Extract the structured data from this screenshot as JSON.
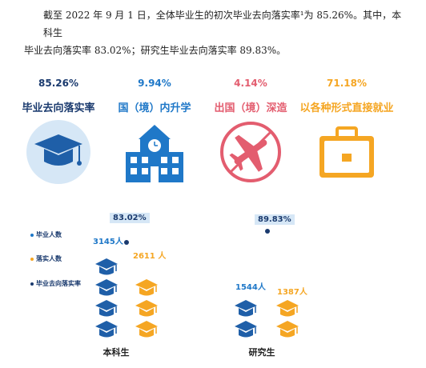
{
  "paragraph": {
    "line1": "截至 2022 年 9 月 1 日，全体毕业生的初次毕业去向落实率¹为 85.26%。其中，本科生",
    "line2": "毕业去向落实率 83.02%；研究生毕业去向落实率 89.83%。"
  },
  "stats": [
    {
      "value": "85.26%",
      "label": "毕业去向落实率",
      "color": "#1a3a6e",
      "icon": "graduation-cap-icon"
    },
    {
      "value": "9.94%",
      "label": "国（境）内升学",
      "color": "#1f78c8",
      "icon": "school-building-icon"
    },
    {
      "value": "4.14%",
      "label": "出国（境）深造",
      "color": "#e35d6f",
      "icon": "airplane-icon"
    },
    {
      "value": "71.18%",
      "label": "以各种形式直接就业",
      "color": "#f5a623",
      "icon": "briefcase-icon"
    }
  ],
  "legend": [
    {
      "label": "毕业人数",
      "color": "#1f78c8"
    },
    {
      "label": "落实人数",
      "color": "#f5a623"
    },
    {
      "label": "毕业去向落实率",
      "color": "#1a3a6e"
    }
  ],
  "chart_data": {
    "type": "bar",
    "categories": [
      "本科生",
      "研究生"
    ],
    "series": [
      {
        "name": "毕业人数",
        "values": [
          3145,
          1544
        ],
        "labels": [
          "3145人",
          "1544人"
        ]
      },
      {
        "name": "落实人数",
        "values": [
          2611,
          1387
        ],
        "labels": [
          "2611 人",
          "1387人"
        ]
      },
      {
        "name": "毕业去向落实率",
        "values": [
          83.02,
          89.83
        ],
        "labels": [
          "83.02%",
          "89.83%"
        ]
      }
    ]
  }
}
